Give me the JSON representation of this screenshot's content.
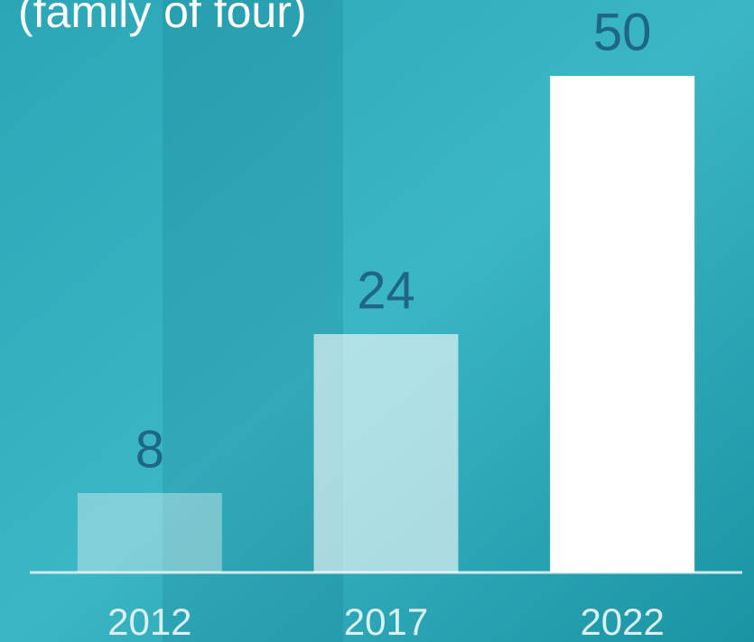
{
  "chart_data": {
    "type": "bar",
    "title": "(family of four)",
    "categories": [
      "2012",
      "2017",
      "2022"
    ],
    "values": [
      8,
      24,
      50
    ],
    "colors": [
      "#ffffff5c",
      "#ffffff99",
      "#ffffff"
    ],
    "ylim": [
      0,
      50
    ],
    "grid": false
  }
}
